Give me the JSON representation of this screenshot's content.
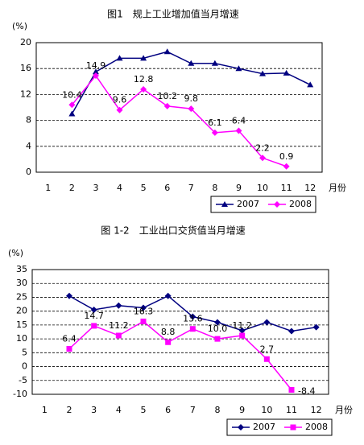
{
  "chart_data": [
    {
      "type": "line",
      "title": "图1　规上工业增加值当月增速",
      "y_label": "(%)",
      "x_label": "月份",
      "categories": [
        "1",
        "2",
        "3",
        "4",
        "5",
        "6",
        "7",
        "8",
        "9",
        "10",
        "11",
        "12"
      ],
      "series": [
        {
          "name": "2007",
          "color": "#000080",
          "marker": "triangle",
          "values": [
            null,
            9.0,
            15.5,
            17.6,
            17.6,
            18.6,
            16.8,
            16.8,
            16.0,
            15.2,
            15.3,
            13.5
          ]
        },
        {
          "name": "2008",
          "color": "#ff00ff",
          "marker": "diamond",
          "values": [
            null,
            10.4,
            14.9,
            9.6,
            12.8,
            10.2,
            9.8,
            6.1,
            6.4,
            2.2,
            0.9,
            null
          ],
          "value_labels": [
            null,
            "10.4",
            "14.9",
            "9.6",
            "12.8",
            "10.2",
            "9.8",
            "6.1",
            "6.4",
            "2.2",
            "0.9",
            null
          ]
        }
      ],
      "ylim": [
        0,
        20
      ],
      "yticks": [
        0,
        4,
        8,
        12,
        16,
        20
      ],
      "grid": true,
      "legend": "bottom-right"
    },
    {
      "type": "line",
      "title": "图 1-2　工业出口交货值当月增速",
      "y_label": "(%)",
      "x_label": "月份",
      "categories": [
        "1",
        "2",
        "3",
        "4",
        "5",
        "6",
        "7",
        "8",
        "9",
        "10",
        "11",
        "12"
      ],
      "series": [
        {
          "name": "2007",
          "color": "#000080",
          "marker": "diamond",
          "values": [
            null,
            25.5,
            20.5,
            22.0,
            21.2,
            25.5,
            18.0,
            16.0,
            13.0,
            16.0,
            12.8,
            14.2
          ]
        },
        {
          "name": "2008",
          "color": "#ff00ff",
          "marker": "square",
          "values": [
            null,
            6.4,
            14.7,
            11.2,
            16.3,
            8.8,
            13.6,
            10.0,
            11.2,
            2.7,
            -8.4,
            null
          ],
          "value_labels": [
            null,
            "6.4",
            "14.7",
            "11.2",
            "16.3",
            "8.8",
            "13.6",
            "10.0",
            "11.2",
            "2.7",
            "-8.4",
            null
          ]
        }
      ],
      "ylim": [
        -10,
        35
      ],
      "yticks": [
        -10,
        -5,
        0,
        5,
        10,
        15,
        20,
        25,
        30,
        35
      ],
      "grid": true,
      "legend": "bottom-right"
    }
  ]
}
